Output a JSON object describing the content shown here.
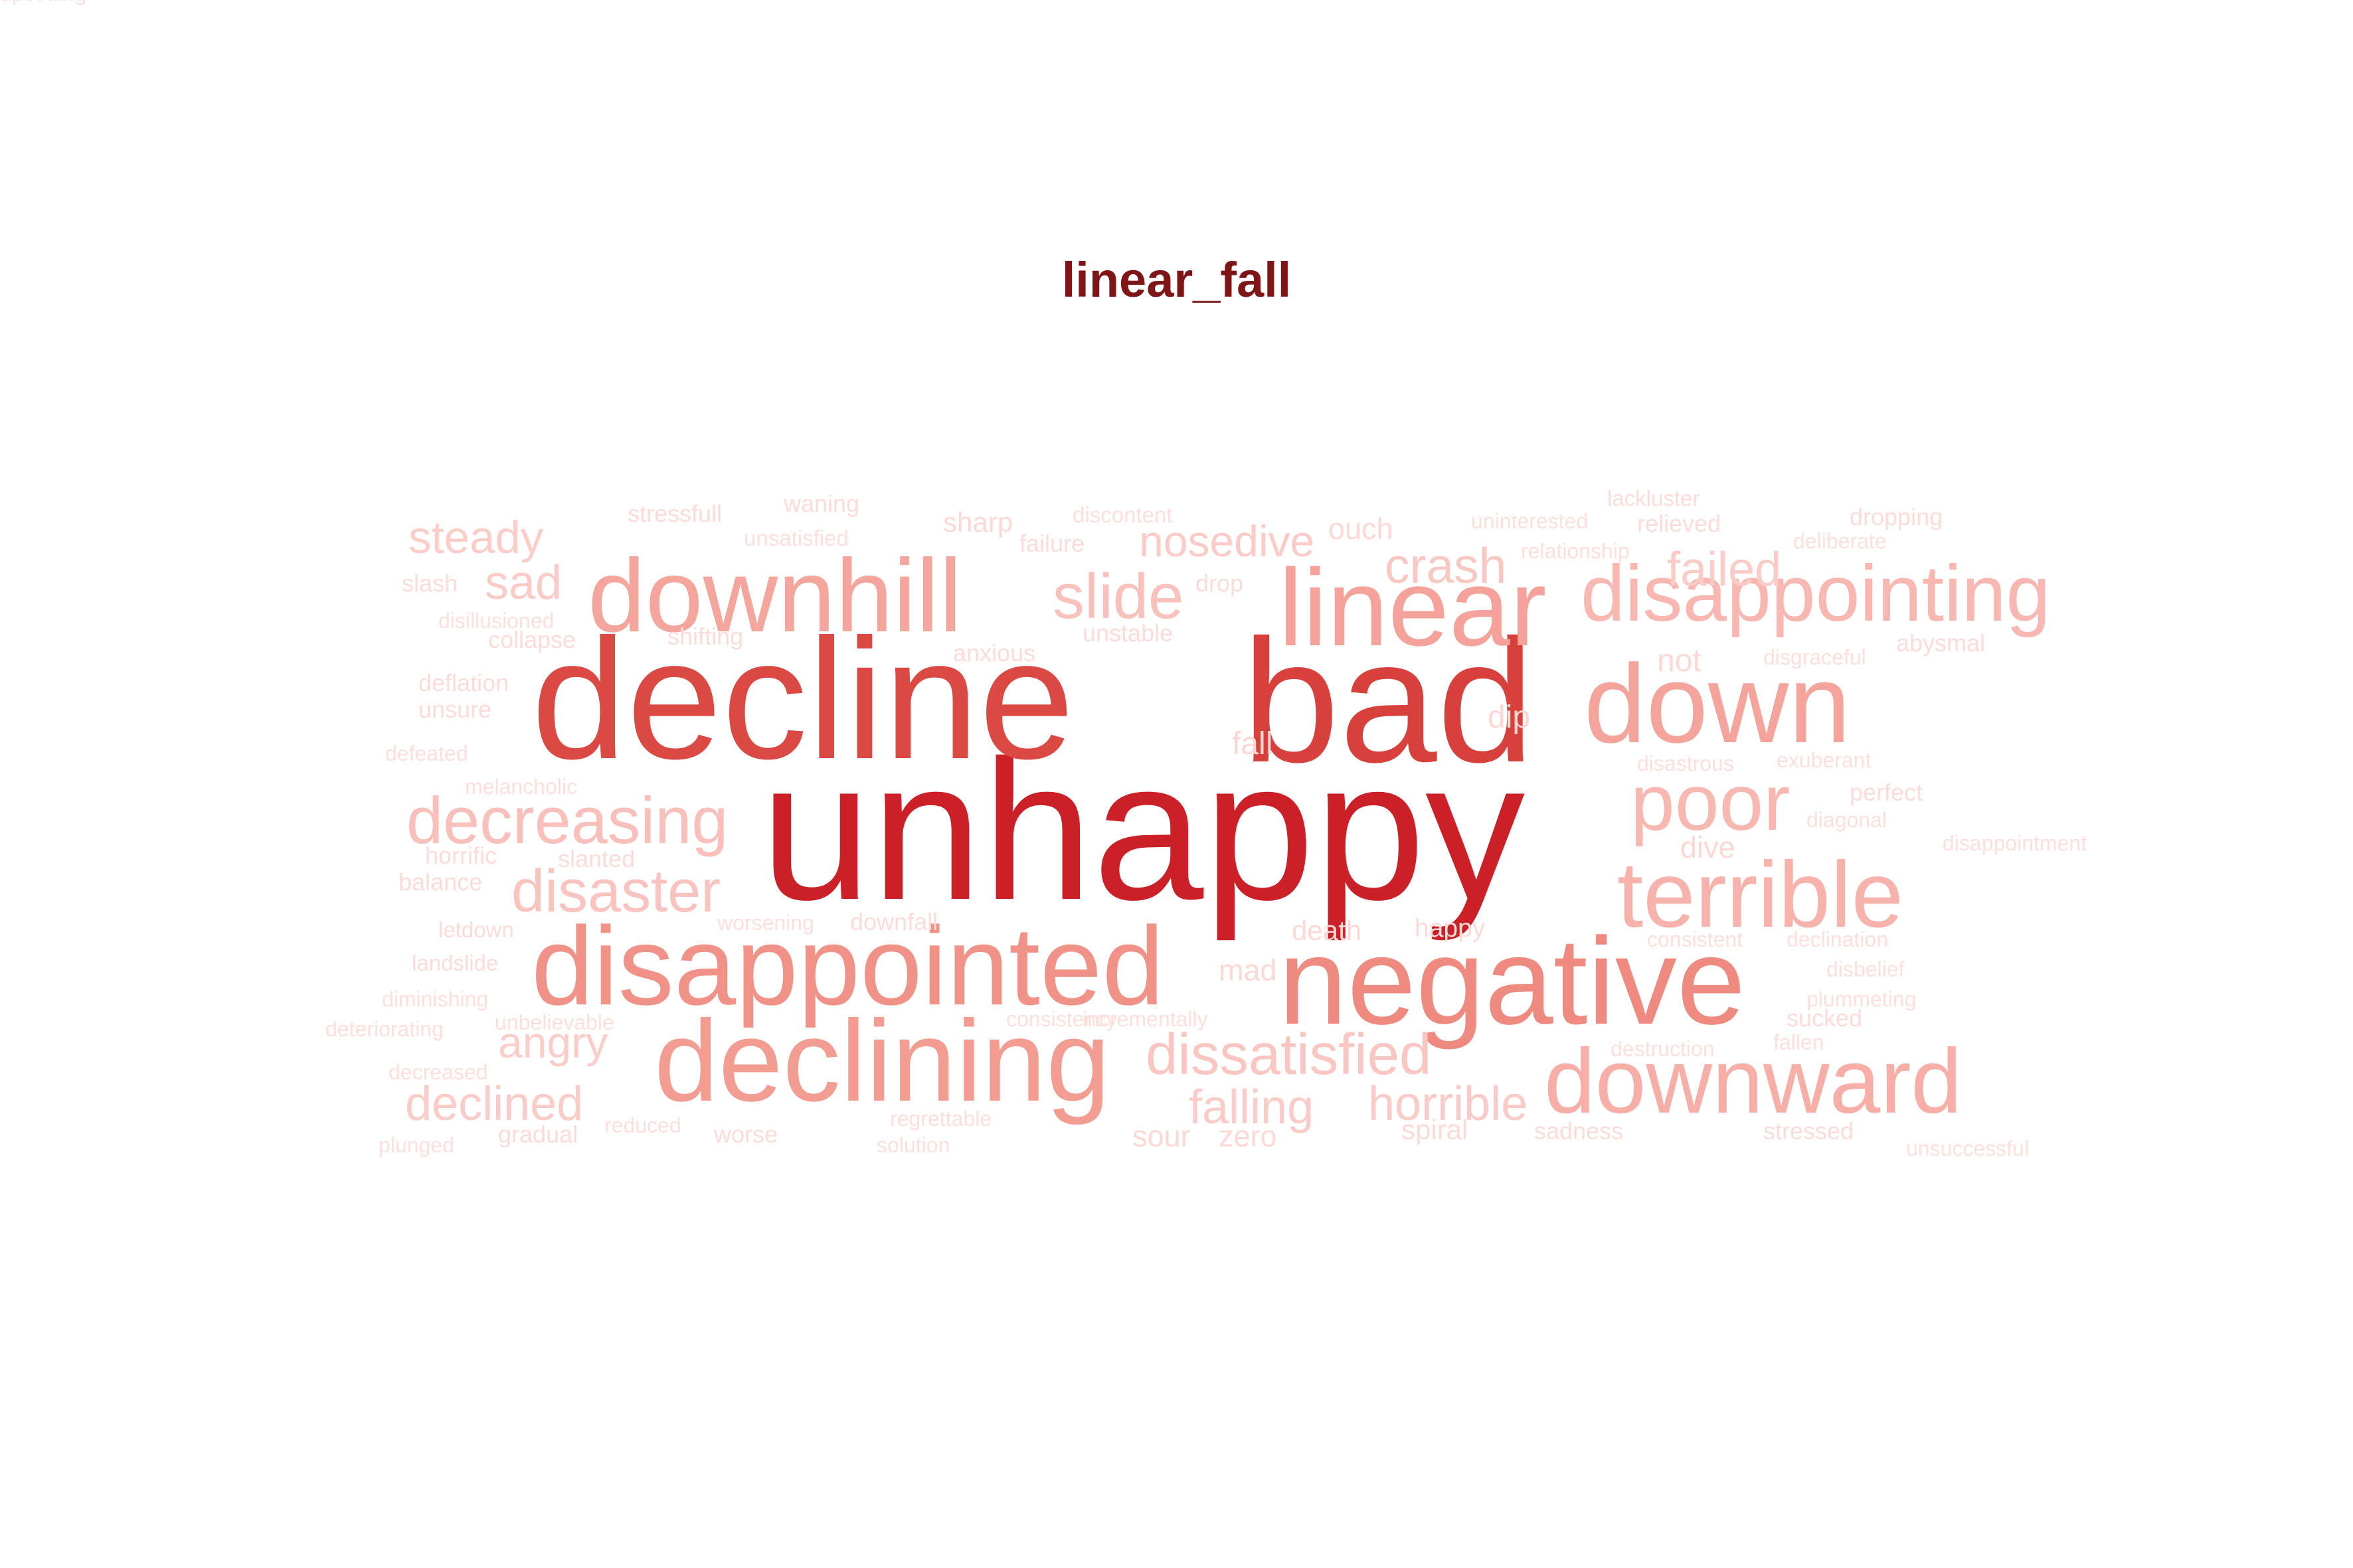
{
  "title": "linear_fall",
  "words": [
    {
      "text": "unhappy",
      "weight": 1.0,
      "color": "#cb2027"
    },
    {
      "text": "bad",
      "weight": 0.88,
      "color": "#d8403c"
    },
    {
      "text": "decline",
      "weight": 0.86,
      "color": "#da4a43"
    },
    {
      "text": "negative",
      "weight": 0.62,
      "color": "#ee8a7f"
    },
    {
      "text": "linear",
      "weight": 0.55,
      "color": "#f4a29a"
    },
    {
      "text": "disappointed",
      "weight": 0.56,
      "color": "#f09287"
    },
    {
      "text": "declining",
      "weight": 0.58,
      "color": "#f29c92"
    },
    {
      "text": "down",
      "weight": 0.56,
      "color": "#f5a49b"
    },
    {
      "text": "downhill",
      "weight": 0.52,
      "color": "#f4a69d"
    },
    {
      "text": "downward",
      "weight": 0.46,
      "color": "#f6aea6"
    },
    {
      "text": "terrible",
      "weight": 0.47,
      "color": "#f7b2ab"
    },
    {
      "text": "disappointing",
      "weight": 0.4,
      "color": "#f8b7b1"
    },
    {
      "text": "poor",
      "weight": 0.4,
      "color": "#f8b8b2"
    },
    {
      "text": "decreasing",
      "weight": 0.33,
      "color": "#f9bfba"
    },
    {
      "text": "slide",
      "weight": 0.32,
      "color": "#f9c1bc"
    },
    {
      "text": "disaster",
      "weight": 0.3,
      "color": "#f9c4bf"
    },
    {
      "text": "dissatisfied",
      "weight": 0.29,
      "color": "#fac6c1"
    },
    {
      "text": "crash",
      "weight": 0.25,
      "color": "#fac8c3"
    },
    {
      "text": "nosedive",
      "weight": 0.22,
      "color": "#fbcbc7"
    },
    {
      "text": "failed",
      "weight": 0.24,
      "color": "#fbcbc7"
    },
    {
      "text": "steady",
      "weight": 0.23,
      "color": "#fbcdc9"
    },
    {
      "text": "sad",
      "weight": 0.24,
      "color": "#fbcbc7"
    },
    {
      "text": "horrible",
      "weight": 0.24,
      "color": "#fbcbc7"
    },
    {
      "text": "falling",
      "weight": 0.24,
      "color": "#fbcbc7"
    },
    {
      "text": "declined",
      "weight": 0.24,
      "color": "#fbcbc7"
    },
    {
      "text": "angry",
      "weight": 0.22,
      "color": "#fbcdc9"
    },
    {
      "text": "fall",
      "weight": 0.16,
      "color": "#fcd7d3"
    },
    {
      "text": "dip",
      "weight": 0.16,
      "color": "#fcd7d3"
    },
    {
      "text": "not",
      "weight": 0.16,
      "color": "#fcd9d5"
    },
    {
      "text": "dive",
      "weight": 0.15,
      "color": "#fcd9d5"
    },
    {
      "text": "ouch",
      "weight": 0.15,
      "color": "#fcd9d5"
    },
    {
      "text": "mad",
      "weight": 0.15,
      "color": "#fcd9d5"
    },
    {
      "text": "death",
      "weight": 0.14,
      "color": "#fcd9d5"
    },
    {
      "text": "sour",
      "weight": 0.15,
      "color": "#fcd9d5"
    },
    {
      "text": "zero",
      "weight": 0.15,
      "color": "#fcd9d5"
    },
    {
      "text": "sharp",
      "weight": 0.14,
      "color": "#fcd9d5"
    },
    {
      "text": "spiral",
      "weight": 0.14,
      "color": "#fcdad6"
    },
    {
      "text": "happy",
      "weight": 0.13,
      "color": "#fcdbd8"
    },
    {
      "text": "relieved",
      "weight": 0.12,
      "color": "#fcdcd9"
    },
    {
      "text": "perfect",
      "weight": 0.12,
      "color": "#fcdcd9"
    },
    {
      "text": "waning",
      "weight": 0.12,
      "color": "#fcdcd9"
    },
    {
      "text": "failure",
      "weight": 0.12,
      "color": "#fcdcd9"
    },
    {
      "text": "drop",
      "weight": 0.12,
      "color": "#fcdcd9"
    },
    {
      "text": "slash",
      "weight": 0.12,
      "color": "#fcdcd9"
    },
    {
      "text": "unsure",
      "weight": 0.12,
      "color": "#fcdcd9"
    },
    {
      "text": "horrific",
      "weight": 0.12,
      "color": "#fcdcd9"
    },
    {
      "text": "slanted",
      "weight": 0.12,
      "color": "#fcdcd9"
    },
    {
      "text": "gradual",
      "weight": 0.12,
      "color": "#fcdcd9"
    },
    {
      "text": "worse",
      "weight": 0.12,
      "color": "#fcdcd9"
    },
    {
      "text": "sadness",
      "weight": 0.12,
      "color": "#fcdcd9"
    },
    {
      "text": "stressed",
      "weight": 0.12,
      "color": "#fcdcd9"
    },
    {
      "text": "sucked",
      "weight": 0.12,
      "color": "#fcdcd9"
    },
    {
      "text": "dropping",
      "weight": 0.12,
      "color": "#fcdcd9"
    },
    {
      "text": "stressfull",
      "weight": 0.12,
      "color": "#fcdcd9"
    },
    {
      "text": "shifting",
      "weight": 0.12,
      "color": "#fcdcd9"
    },
    {
      "text": "collapse",
      "weight": 0.12,
      "color": "#fcdcd9"
    },
    {
      "text": "deflation",
      "weight": 0.12,
      "color": "#fcdcd9"
    },
    {
      "text": "downfall",
      "weight": 0.12,
      "color": "#fcdcd9"
    },
    {
      "text": "abysmal",
      "weight": 0.12,
      "color": "#fcdcd9"
    },
    {
      "text": "unstable",
      "weight": 0.12,
      "color": "#fcdcd9"
    },
    {
      "text": "anxious",
      "weight": 0.12,
      "color": "#fcdcd9"
    },
    {
      "text": "balance",
      "weight": 0.12,
      "color": "#fcdcd9"
    },
    {
      "text": "letdown",
      "weight": 0.11,
      "color": "#fcdcd9"
    },
    {
      "text": "landslide",
      "weight": 0.11,
      "color": "#fcdcd9"
    },
    {
      "text": "lackluster",
      "weight": 0.11,
      "color": "#fcdcd9"
    },
    {
      "text": "unsatisfied",
      "weight": 0.11,
      "color": "#fddfdc"
    },
    {
      "text": "discontent",
      "weight": 0.11,
      "color": "#fddfdc"
    },
    {
      "text": "uninterested",
      "weight": 0.1,
      "color": "#fddfdc"
    },
    {
      "text": "relationship",
      "weight": 0.1,
      "color": "#fddfdc"
    },
    {
      "text": "deliberate",
      "weight": 0.1,
      "color": "#fddfdc"
    },
    {
      "text": "disillusioned",
      "weight": 0.1,
      "color": "#fddfdc"
    },
    {
      "text": "disgraceful",
      "weight": 0.1,
      "color": "#fddfdc"
    },
    {
      "text": "defeated",
      "weight": 0.1,
      "color": "#fddfdc"
    },
    {
      "text": "melancholic",
      "weight": 0.1,
      "color": "#fddfdc"
    },
    {
      "text": "disastrous",
      "weight": 0.1,
      "color": "#fddfdc"
    },
    {
      "text": "exuberant",
      "weight": 0.1,
      "color": "#fddfdc"
    },
    {
      "text": "diagonal",
      "weight": 0.1,
      "color": "#fddfdc"
    },
    {
      "text": "disappointment",
      "weight": 0.1,
      "color": "#fddfdc"
    },
    {
      "text": "worsening",
      "weight": 0.1,
      "color": "#fddfdc"
    },
    {
      "text": "consistent",
      "weight": 0.1,
      "color": "#fddfdc"
    },
    {
      "text": "declination",
      "weight": 0.1,
      "color": "#fddfdc"
    },
    {
      "text": "disbelief",
      "weight": 0.1,
      "color": "#fddfdc"
    },
    {
      "text": "diminishing",
      "weight": 0.1,
      "color": "#fddfdc"
    },
    {
      "text": "plummeting",
      "weight": 0.1,
      "color": "#fddfdc"
    },
    {
      "text": "deteriorating",
      "weight": 0.1,
      "color": "#fddfdc"
    },
    {
      "text": "unbelievable",
      "weight": 0.1,
      "color": "#fddfdc"
    },
    {
      "text": "incrementally",
      "weight": 0.1,
      "color": "#fddfdc"
    },
    {
      "text": "consistency",
      "weight": 0.1,
      "color": "#fddfdc"
    },
    {
      "text": "fallen",
      "weight": 0.1,
      "color": "#fddfdc"
    },
    {
      "text": "destruction",
      "weight": 0.1,
      "color": "#fddfdc"
    },
    {
      "text": "decreased",
      "weight": 0.1,
      "color": "#fddfdc"
    },
    {
      "text": "regrettable",
      "weight": 0.1,
      "color": "#fddfdc"
    },
    {
      "text": "reduced",
      "weight": 0.1,
      "color": "#fddfdc"
    },
    {
      "text": "plunged",
      "weight": 0.1,
      "color": "#fddfdc"
    },
    {
      "text": "solution",
      "weight": 0.1,
      "color": "#fddfdc"
    },
    {
      "text": "unsuccessful",
      "weight": 0.1,
      "color": "#fddfdc"
    },
    {
      "text": "upsetting",
      "weight": 0.1,
      "color": "#fddfdc"
    }
  ]
}
